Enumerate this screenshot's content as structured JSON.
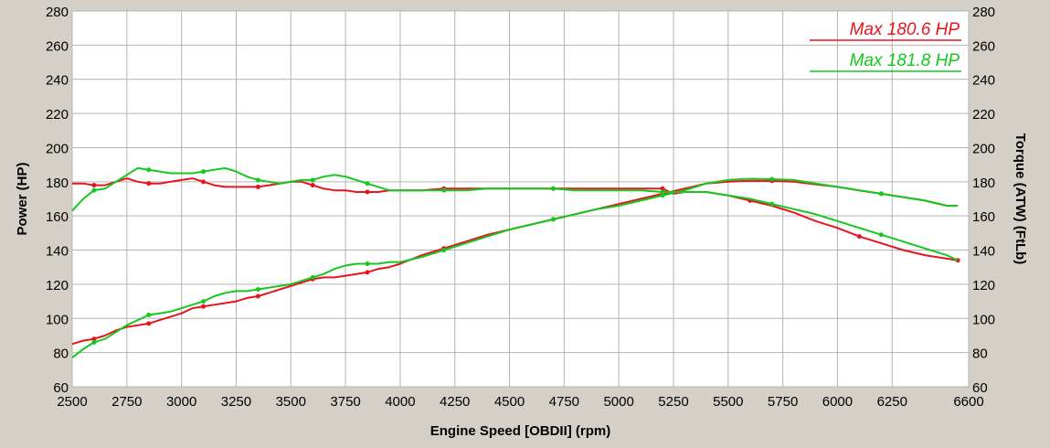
{
  "chart_data": {
    "type": "line",
    "xlabel": "Engine Speed [OBDII] (rpm)",
    "ylabel_left": "Power (HP)",
    "ylabel_right": "Torque (ATW) (FtLb)",
    "xlim": [
      2500,
      6600
    ],
    "ylim": [
      60,
      280
    ],
    "x_ticks": [
      2500,
      2750,
      3000,
      3250,
      3500,
      3750,
      4000,
      4250,
      4500,
      4750,
      5000,
      5250,
      5500,
      5750,
      6000,
      6250,
      6600
    ],
    "y_ticks": [
      60,
      80,
      100,
      120,
      140,
      160,
      180,
      200,
      220,
      240,
      260,
      280
    ],
    "grid": true,
    "legend_position": "top-right",
    "legend": [
      {
        "label": "Max 180.6 HP",
        "color": "#e8141e"
      },
      {
        "label": "Max 181.8 HP",
        "color": "#14c81e"
      }
    ],
    "colors": {
      "run1": "#e8141e",
      "run2": "#14c81e",
      "plot_bg": "#ffffff",
      "grid": "#b4b4b4"
    },
    "series": [
      {
        "name": "Max 180.6 HP",
        "kind": "power",
        "color": "#e8141e",
        "x": [
          2500,
          2550,
          2600,
          2650,
          2700,
          2750,
          2800,
          2850,
          2900,
          2950,
          3000,
          3050,
          3100,
          3150,
          3200,
          3250,
          3300,
          3350,
          3400,
          3450,
          3500,
          3550,
          3600,
          3650,
          3700,
          3750,
          3800,
          3850,
          3900,
          3950,
          4000,
          4100,
          4200,
          4300,
          4400,
          4500,
          4600,
          4700,
          4800,
          4900,
          5000,
          5100,
          5200,
          5300,
          5400,
          5500,
          5600,
          5700,
          5800,
          5900,
          6000,
          6100,
          6200,
          6300,
          6400,
          6500,
          6550
        ],
        "y": [
          85,
          87,
          88,
          90,
          93,
          95,
          96,
          97,
          99,
          101,
          103,
          106,
          107,
          108,
          109,
          110,
          112,
          113,
          115,
          117,
          119,
          121,
          123,
          124,
          124,
          125,
          126,
          127,
          129,
          130,
          132,
          137,
          141,
          145,
          149,
          152,
          155,
          158,
          161,
          164,
          167,
          170,
          173,
          176,
          179,
          180,
          180.6,
          180.5,
          180,
          178.5,
          177,
          175,
          173,
          171,
          169,
          166,
          166
        ]
      },
      {
        "name": "Max 180.6 HP",
        "kind": "torque",
        "color": "#e8141e",
        "x": [
          2500,
          2550,
          2600,
          2650,
          2700,
          2750,
          2800,
          2850,
          2900,
          2950,
          3000,
          3050,
          3100,
          3150,
          3200,
          3250,
          3300,
          3350,
          3400,
          3450,
          3500,
          3550,
          3600,
          3650,
          3700,
          3750,
          3800,
          3850,
          3900,
          3950,
          4000,
          4100,
          4200,
          4300,
          4400,
          4500,
          4600,
          4700,
          4800,
          4900,
          5000,
          5100,
          5200,
          5250,
          5300,
          5400,
          5500,
          5600,
          5700,
          5800,
          5900,
          6000,
          6100,
          6200,
          6300,
          6400,
          6500,
          6550
        ],
        "y": [
          179,
          179,
          178,
          178,
          180,
          182,
          180,
          179,
          179,
          180,
          181,
          182,
          180,
          178,
          177,
          177,
          177,
          177,
          178,
          179,
          180,
          180,
          178,
          176,
          175,
          175,
          174,
          174,
          174,
          175,
          175,
          175,
          176,
          176,
          176,
          176,
          176,
          176,
          176,
          176,
          176,
          176,
          176,
          173,
          174,
          174,
          172,
          169,
          166,
          162,
          157,
          153,
          148,
          144,
          140,
          137,
          135,
          134
        ]
      },
      {
        "name": "Max 181.8 HP",
        "kind": "power",
        "color": "#14c81e",
        "x": [
          2500,
          2550,
          2600,
          2650,
          2700,
          2750,
          2800,
          2850,
          2900,
          2950,
          3000,
          3050,
          3100,
          3150,
          3200,
          3250,
          3300,
          3350,
          3400,
          3450,
          3500,
          3550,
          3600,
          3650,
          3700,
          3750,
          3800,
          3850,
          3900,
          3950,
          4000,
          4100,
          4200,
          4300,
          4400,
          4500,
          4600,
          4700,
          4800,
          4900,
          5000,
          5100,
          5200,
          5300,
          5400,
          5500,
          5600,
          5700,
          5800,
          5900,
          6000,
          6100,
          6200,
          6300,
          6400,
          6500,
          6550
        ],
        "y": [
          77,
          82,
          86,
          88,
          92,
          96,
          99,
          102,
          103,
          104,
          106,
          108,
          110,
          113,
          115,
          116,
          116,
          117,
          118,
          119,
          120,
          122,
          124,
          126,
          129,
          131,
          132,
          132,
          132,
          133,
          133,
          136,
          140,
          144,
          148,
          152,
          155,
          158,
          161,
          164,
          166,
          169,
          172,
          175,
          179,
          181,
          181.8,
          181.5,
          181,
          179,
          177,
          175,
          173,
          171,
          169,
          166,
          166
        ]
      },
      {
        "name": "Max 181.8 HP",
        "kind": "torque",
        "color": "#14c81e",
        "x": [
          2500,
          2550,
          2600,
          2650,
          2700,
          2750,
          2800,
          2850,
          2900,
          2950,
          3000,
          3050,
          3100,
          3150,
          3200,
          3250,
          3300,
          3350,
          3400,
          3450,
          3500,
          3550,
          3600,
          3650,
          3700,
          3750,
          3800,
          3850,
          3900,
          3950,
          4000,
          4100,
          4200,
          4300,
          4400,
          4500,
          4600,
          4700,
          4800,
          4900,
          5000,
          5100,
          5200,
          5300,
          5400,
          5500,
          5600,
          5700,
          5800,
          5900,
          6000,
          6100,
          6200,
          6300,
          6400,
          6500,
          6550
        ],
        "y": [
          163,
          170,
          175,
          176,
          180,
          184,
          188,
          187,
          186,
          185,
          185,
          185,
          186,
          187,
          188,
          186,
          183,
          181,
          180,
          179,
          180,
          181,
          181,
          183,
          184,
          183,
          181,
          179,
          177,
          175,
          175,
          175,
          175,
          175,
          176,
          176,
          176,
          176,
          175,
          175,
          175,
          175,
          174,
          174,
          174,
          172,
          170,
          167,
          164,
          161,
          157,
          153,
          149,
          145,
          141,
          137,
          134
        ]
      }
    ]
  }
}
